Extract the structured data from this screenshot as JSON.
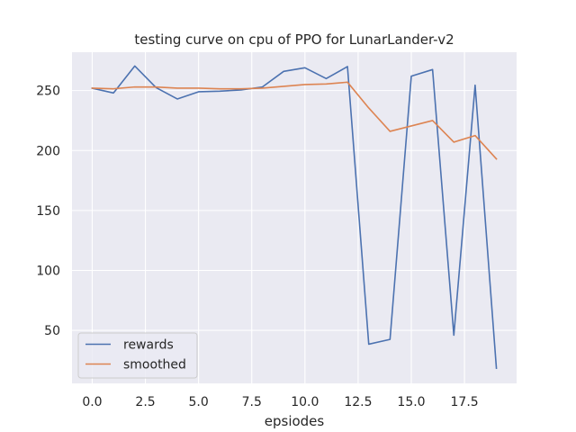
{
  "chart_data": {
    "type": "line",
    "title": "testing curve on cpu of PPO for LunarLander-v2",
    "xlabel": "epsiodes",
    "ylabel": "",
    "xlim": [
      -0.95,
      19.95
    ],
    "ylim": [
      5.8,
      282.0
    ],
    "xticks": [
      0.0,
      2.5,
      5.0,
      7.5,
      10.0,
      12.5,
      15.0,
      17.5
    ],
    "xtick_labels": [
      "0.0",
      "2.5",
      "5.0",
      "7.5",
      "10.0",
      "12.5",
      "15.0",
      "17.5"
    ],
    "yticks": [
      50,
      100,
      150,
      200,
      250
    ],
    "ytick_labels": [
      "50",
      "100",
      "150",
      "200",
      "250"
    ],
    "grid": true,
    "legend_position": "lower-left",
    "x": [
      0,
      1,
      2,
      3,
      4,
      5,
      6,
      7,
      8,
      9,
      10,
      11,
      12,
      13,
      14,
      15,
      16,
      17,
      18,
      19
    ],
    "series": [
      {
        "name": "rewards",
        "color": "#4c72b0",
        "values": [
          252.0,
          248.0,
          270.5,
          252.5,
          243.0,
          249.0,
          249.5,
          250.5,
          253.0,
          266.0,
          269.0,
          260.0,
          270.0,
          38.5,
          42.5,
          262.0,
          267.5,
          46.0,
          254.5,
          18.5
        ]
      },
      {
        "name": "smoothed",
        "color": "#dd8452",
        "values": [
          252.0,
          251.5,
          253.0,
          253.0,
          252.0,
          252.0,
          251.5,
          251.5,
          252.0,
          253.5,
          255.0,
          255.5,
          257.0,
          235.5,
          216.0,
          220.5,
          225.0,
          207.0,
          212.5,
          193.0
        ]
      }
    ]
  }
}
